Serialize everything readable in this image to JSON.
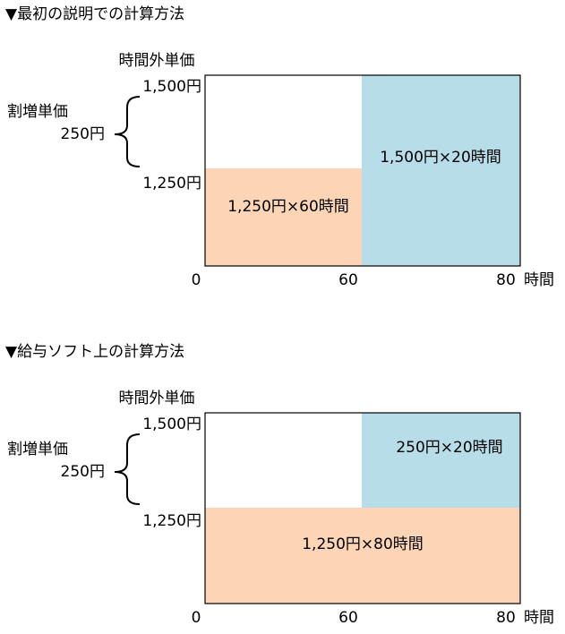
{
  "panels": [
    {
      "title": "▼最初の説明での計算方法",
      "y_axis_title": "時間外単価",
      "upper_price": "1,500円",
      "lower_price": "1,250円",
      "bracket_title": "割増単価",
      "bracket_value": "250円",
      "regions": [
        "1,250円×60時間",
        "1,500円×20時間"
      ],
      "x_labels": [
        "0",
        "60",
        "80"
      ],
      "x_unit": "時間"
    },
    {
      "title": "▼給与ソフト上の計算方法",
      "y_axis_title": "時間外単価",
      "upper_price": "1,500円",
      "lower_price": "1,250円",
      "bracket_title": "割増単価",
      "bracket_value": "250円",
      "regions": [
        "1,250円×80時間",
        "250円×20時間"
      ],
      "x_labels": [
        "0",
        "60",
        "80"
      ],
      "x_unit": "時間"
    }
  ]
}
